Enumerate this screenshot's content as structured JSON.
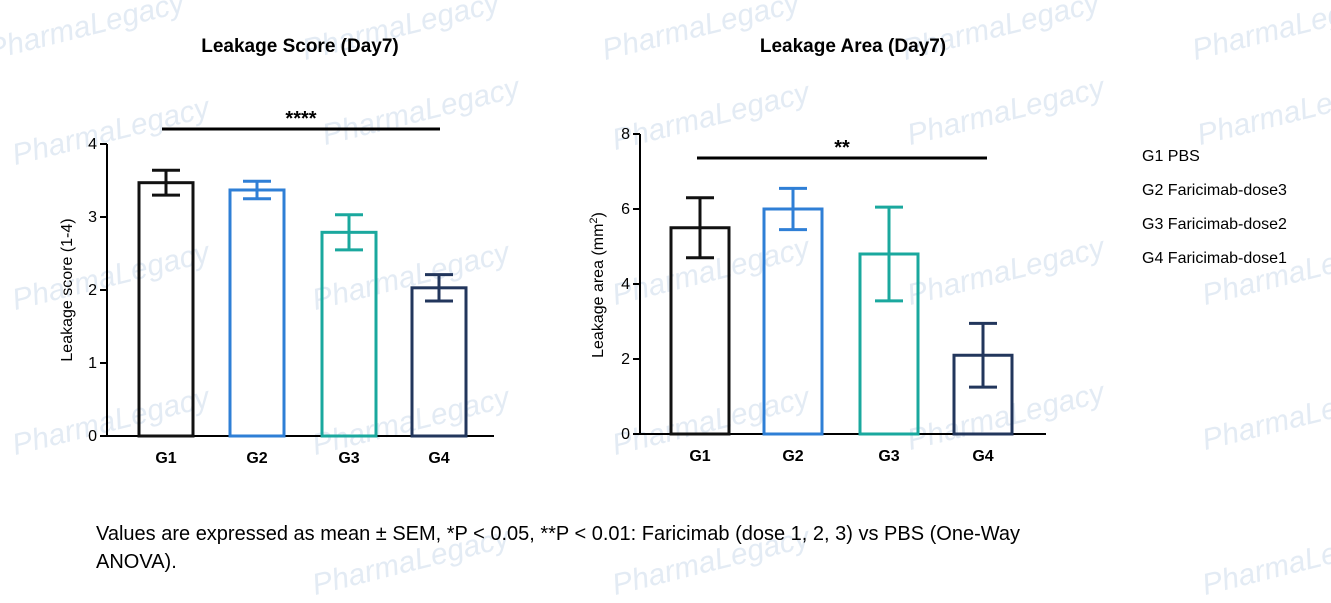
{
  "watermark": "PharmaLegacy",
  "legend": [
    {
      "group": "G1",
      "label": "G1 PBS",
      "color": "#111111"
    },
    {
      "group": "G2",
      "label": "G2 Faricimab-dose3",
      "color": "#2f7fd6"
    },
    {
      "group": "G3",
      "label": "G3 Faricimab-dose2",
      "color": "#1aa89e"
    },
    {
      "group": "G4",
      "label": "G4 Faricimab-dose1",
      "color": "#22365c"
    }
  ],
  "footnote": "Values are expressed as mean ± SEM, *P < 0.05, **P < 0.01: Faricimab (dose 1, 2, 3) vs PBS (One-Way ANOVA).",
  "chart_data": [
    {
      "type": "bar",
      "title": "Leakage Score (Day7)",
      "ylabel": "Leakage score (1-4)",
      "ylim": [
        0,
        4
      ],
      "yticks": [
        "0",
        "1",
        "2",
        "3",
        "4"
      ],
      "categories": [
        "G1",
        "G2",
        "G3",
        "G4"
      ],
      "values": [
        3.47,
        3.37,
        2.79,
        2.03
      ],
      "errors": [
        0.17,
        0.12,
        0.24,
        0.18
      ],
      "colors": [
        "#111111",
        "#2f7fd6",
        "#1aa89e",
        "#22365c"
      ],
      "significance": {
        "from": "G1",
        "to": "G4",
        "label": "****"
      }
    },
    {
      "type": "bar",
      "title": "Leakage Area (Day7)",
      "ylabel_prefix": "Leakage area (mm",
      "ylabel_sup": "2",
      "ylabel_suffix": ")",
      "ylim": [
        0,
        8
      ],
      "yticks": [
        "0",
        "2",
        "4",
        "6",
        "8"
      ],
      "categories": [
        "G1",
        "G2",
        "G3",
        "G4"
      ],
      "values": [
        5.5,
        6.0,
        4.8,
        2.1
      ],
      "errors": [
        0.8,
        0.55,
        1.25,
        0.85
      ],
      "colors": [
        "#111111",
        "#2f7fd6",
        "#1aa89e",
        "#22365c"
      ],
      "significance": {
        "from": "G1",
        "to": "G4",
        "label": "**"
      }
    }
  ]
}
